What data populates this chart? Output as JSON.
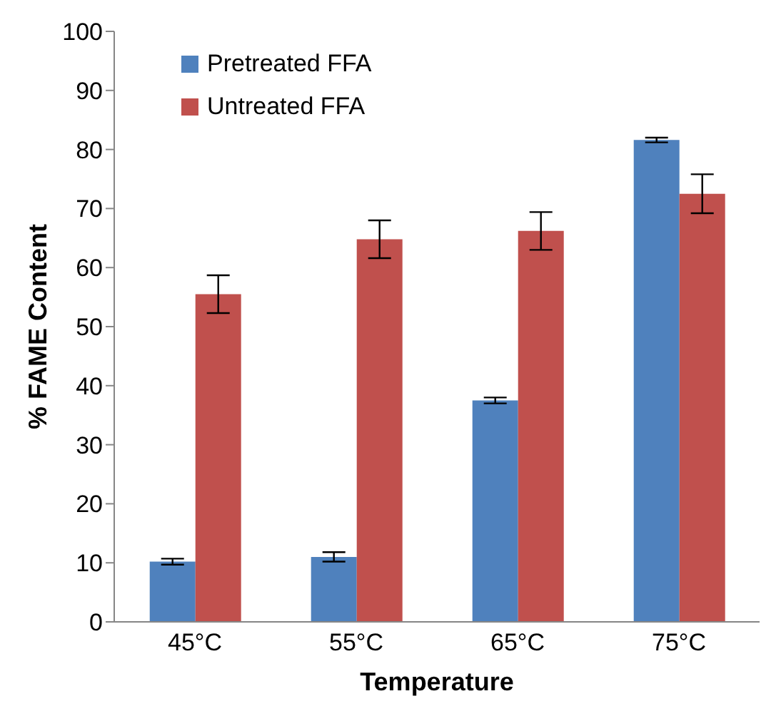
{
  "chart_data": {
    "type": "bar",
    "xlabel": "Temperature",
    "ylabel": "% FAME Content",
    "categories": [
      "45°C",
      "55°C",
      "65°C",
      "75°C"
    ],
    "series": [
      {
        "name": "Pretreated FFA",
        "color": "#4f81bd",
        "values": [
          10.2,
          11,
          37.5,
          81.6
        ],
        "errors": [
          0.5,
          0.8,
          0.5,
          0.4
        ]
      },
      {
        "name": "Untreated FFA",
        "color": "#c0504d",
        "values": [
          55.5,
          64.8,
          66.2,
          72.5
        ],
        "errors": [
          3.2,
          3.2,
          3.2,
          3.3
        ]
      }
    ],
    "ylim": [
      0,
      100
    ],
    "yticks": [
      0,
      10,
      20,
      30,
      40,
      50,
      60,
      70,
      80,
      90,
      100
    ],
    "grid": false,
    "legend": "top left"
  }
}
